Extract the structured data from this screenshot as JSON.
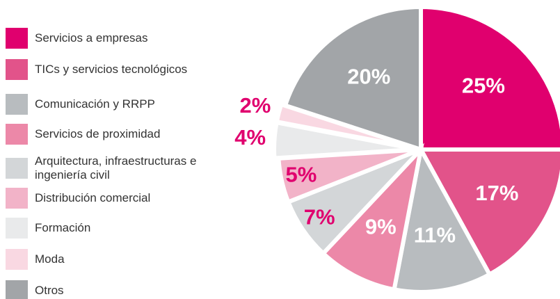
{
  "chart_data": {
    "type": "pie",
    "categories": [
      "Servicios a empresas",
      "TICs y servicios tecnológicos",
      "Comunicación y RRPP",
      "Servicios de proximidad",
      "Arquitectura, infraestructuras e ingeniería civil",
      "Distribución comercial",
      "Formación",
      "Moda",
      "Otros"
    ],
    "values": [
      25,
      17,
      11,
      9,
      7,
      5,
      4,
      2,
      20
    ],
    "value_labels": [
      "25%",
      "17%",
      "11%",
      "9%",
      "7%",
      "5%",
      "4%",
      "2%",
      "20%"
    ],
    "colors": [
      "#e0006e",
      "#e2538a",
      "#b8bcbf",
      "#ec88a8",
      "#d3d6d8",
      "#f2b3c8",
      "#e9eaeb",
      "#f9d8e2",
      "#a2a5a8"
    ],
    "value_label_colors": [
      "#ffffff",
      "#ffffff",
      "#ffffff",
      "#ffffff",
      "#e0006e",
      "#e0006e",
      "#e0006e",
      "#e0006e",
      "#ffffff"
    ],
    "legend": "left"
  }
}
